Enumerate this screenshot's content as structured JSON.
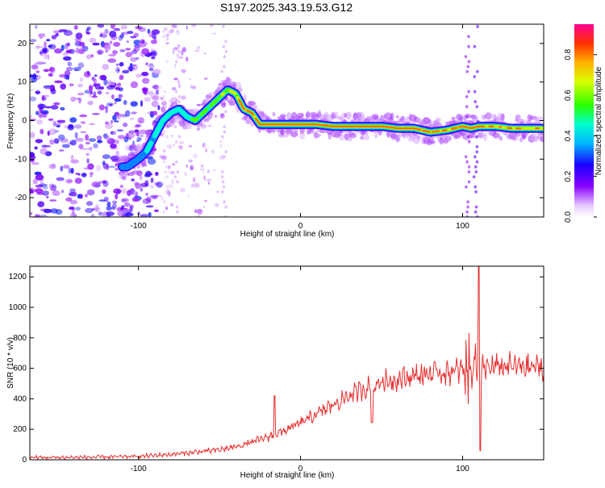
{
  "figure": {
    "title": "S197.2025.343.19.53.G12"
  },
  "chart_data": [
    {
      "type": "heatmap",
      "title": "S197.2025.343.19.53.G12",
      "xlabel": "Height of straight line (km)",
      "ylabel": "Frequency (Hz)",
      "xlim": [
        -167,
        150
      ],
      "ylim": [
        -25,
        25
      ],
      "xticks": [
        -100,
        0,
        100
      ],
      "yticks": [
        -20,
        -10,
        0,
        10,
        20
      ],
      "colorbar": {
        "label": "Normalized spectral amplitude",
        "range": [
          0,
          0.95
        ],
        "ticks": [
          0.0,
          0.2,
          0.4,
          0.6,
          0.8
        ],
        "tick_labels": [
          "0.0",
          "0.2",
          "0.4",
          "0.6",
          "0.8"
        ],
        "colormap": "rainbow"
      },
      "ridge": {
        "x": [
          -107,
          -100,
          -95,
          -90,
          -85,
          -80,
          -75,
          -70,
          -65,
          -60,
          -55,
          -50,
          -45,
          -40,
          -35,
          -30,
          -25,
          -20,
          -10,
          0,
          10,
          20,
          30,
          40,
          50,
          60,
          70,
          80,
          90,
          100,
          105,
          110,
          120,
          130,
          140,
          150
        ],
        "freq": [
          -12,
          -10,
          -8,
          -4,
          0,
          2,
          3,
          1,
          0,
          2,
          4,
          6,
          8,
          7,
          3,
          2,
          -1,
          -1,
          -1,
          -1,
          -1,
          -1.5,
          -1.5,
          -1.5,
          -1.5,
          -2,
          -2,
          -3,
          -2.5,
          -1.5,
          -2,
          -1.5,
          -1.5,
          -2,
          -2,
          -2
        ],
        "amplitude": [
          0.3,
          0.3,
          0.35,
          0.4,
          0.45,
          0.4,
          0.4,
          0.45,
          0.5,
          0.55,
          0.5,
          0.55,
          0.6,
          0.7,
          0.75,
          0.75,
          0.8,
          0.85,
          0.9,
          0.9,
          0.85,
          0.8,
          0.85,
          0.9,
          0.85,
          0.8,
          0.85,
          0.75,
          0.7,
          0.8,
          0.85,
          0.8,
          0.65,
          0.7,
          0.65,
          0.7
        ]
      }
    },
    {
      "type": "line",
      "xlabel": "Height of straight line (km)",
      "ylabel": "SNR (10 * v/v)",
      "xlim": [
        -167,
        150
      ],
      "ylim": [
        0,
        1270
      ],
      "xticks": [
        -100,
        0,
        100
      ],
      "yticks": [
        0,
        200,
        400,
        600,
        800,
        1000,
        1200
      ],
      "series": [
        {
          "name": "SNR",
          "color": "#e83030",
          "x": [
            -167,
            -140,
            -120,
            -100,
            -80,
            -60,
            -50,
            -40,
            -30,
            -20,
            -10,
            0,
            10,
            20,
            30,
            40,
            50,
            60,
            70,
            80,
            90,
            100,
            110,
            120,
            130,
            140,
            150
          ],
          "y": [
            15,
            15,
            18,
            22,
            35,
            55,
            65,
            85,
            115,
            150,
            190,
            240,
            300,
            360,
            420,
            470,
            510,
            530,
            550,
            565,
            575,
            585,
            600,
            610,
            615,
            610,
            605
          ]
        }
      ],
      "spikes": [
        {
          "x": -16,
          "y": 420
        },
        {
          "x": 44,
          "y": 245
        },
        {
          "x": 102,
          "y": 860
        },
        {
          "x": 110,
          "y": 1265
        },
        {
          "x": 111,
          "y": 60
        }
      ]
    }
  ]
}
